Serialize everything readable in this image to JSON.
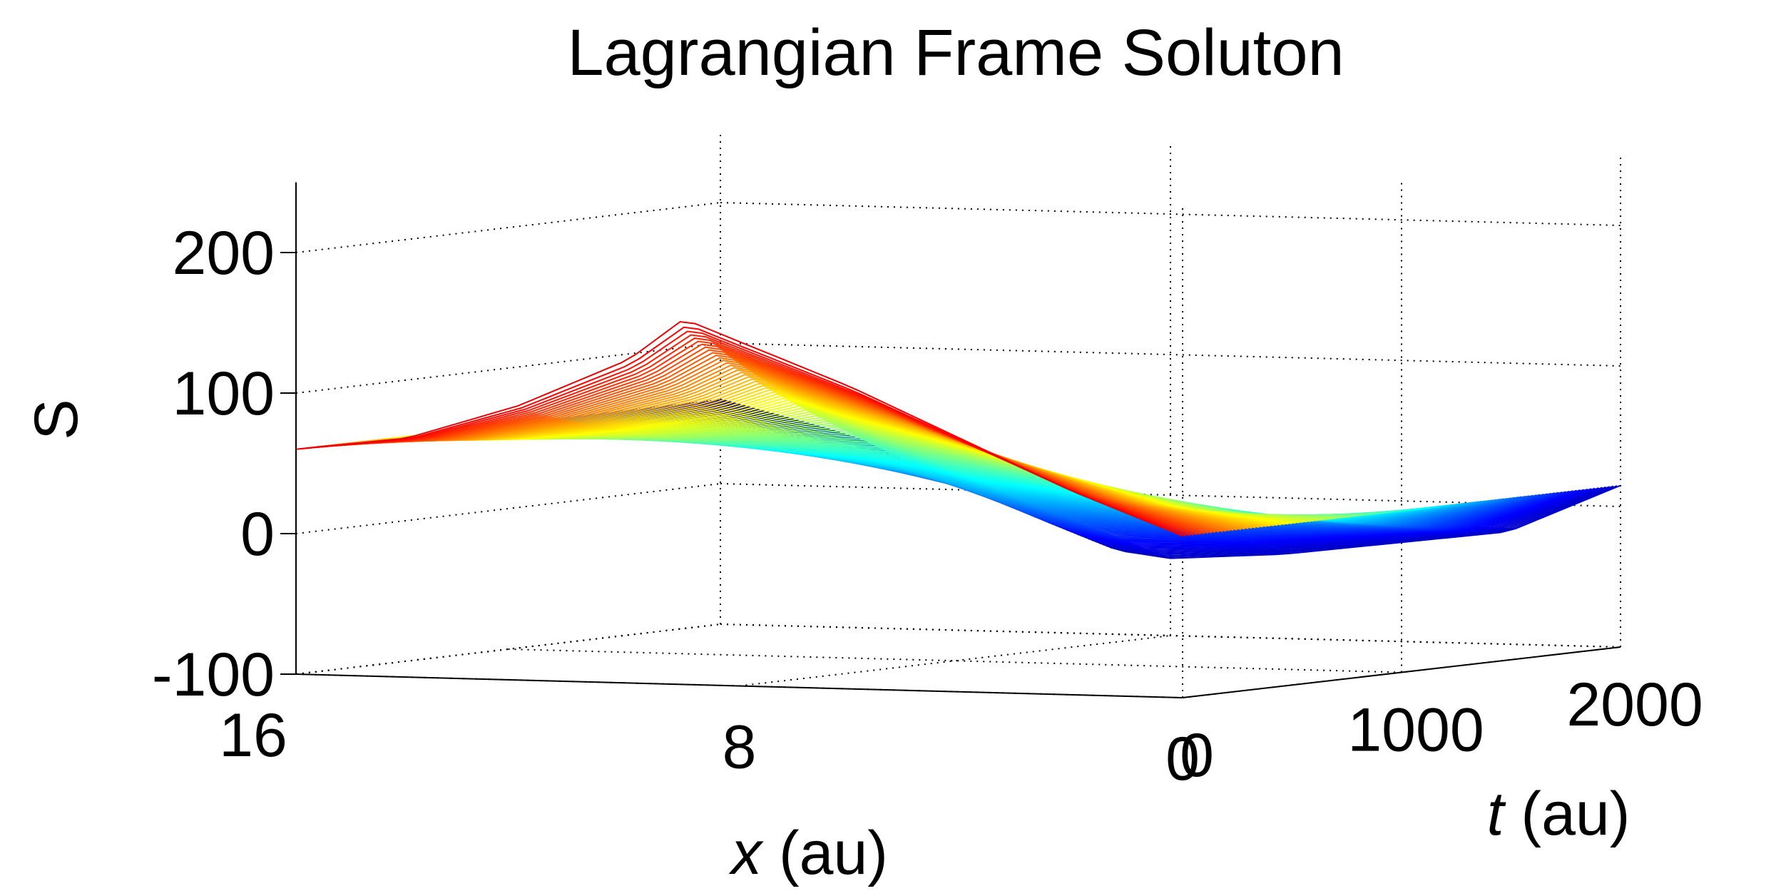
{
  "chart_data": {
    "type": "surface-waterfall",
    "title": "Lagrangian Frame Soluton",
    "xlabel": {
      "var": "x",
      "unit": " (au)"
    },
    "ylabel": {
      "var": "t",
      "unit": " (au)"
    },
    "zlabel": "S",
    "xlim": [
      0,
      16
    ],
    "ylim": [
      0,
      2000
    ],
    "zlim": [
      -100,
      250
    ],
    "x_ticks": [
      16,
      8,
      0
    ],
    "x_tick_labels": [
      "16",
      "8",
      "0"
    ],
    "t_ticks": [
      2000,
      1000,
      0
    ],
    "t_tick_labels": [
      "2000",
      "1000",
      "0"
    ],
    "z_ticks": [
      -100,
      0,
      100,
      200
    ],
    "z_tick_labels": [
      "-100",
      "0",
      "100",
      "200"
    ],
    "grid": true,
    "colormap": "jet",
    "colors": {
      "low": "#00008f",
      "mid": "#00ffff",
      "high_mid": "#ffff00",
      "high": "#800000"
    },
    "surface_profile": {
      "x": [
        16,
        14,
        12,
        10,
        9,
        8,
        6,
        4,
        2,
        0
      ],
      "S_at_t0": [
        60,
        70,
        95,
        130,
        160,
        145,
        115,
        80,
        45,
        15
      ],
      "S_at_tmax": [
        60,
        40,
        15,
        -15,
        -40,
        -45,
        -40,
        -30,
        -20,
        15
      ]
    }
  }
}
